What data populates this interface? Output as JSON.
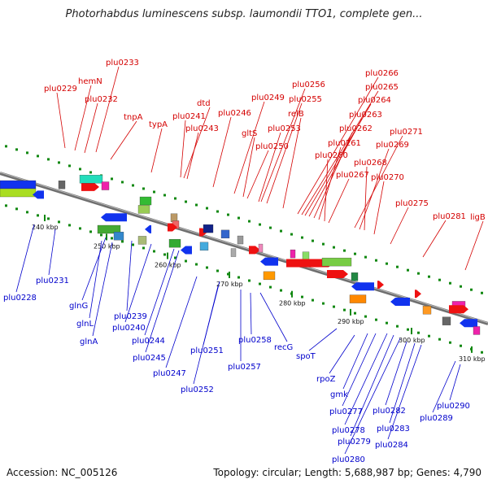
{
  "title": "Photorhabdus luminescens subsp. laumondii TTO1, complete gen...",
  "footer": {
    "accession": "Accession: NC_005126",
    "summary": "Topology: circular; Length: 5,688,987 bp; Genes: 4,790"
  },
  "colors": {
    "forward_label": "#d40000",
    "reverse_label": "#0000cc",
    "forward_gene": "#ee1111",
    "reverse_gene": "#1133ee",
    "backbone": "#777777",
    "tick": "#118811"
  },
  "ticks": [
    "240 kbp",
    "250 kbp",
    "260 kbp",
    "270 kbp",
    "280 kbp",
    "290 kbp",
    "300 kbp",
    "310 kbp"
  ],
  "forward_labels": [
    "plu0229",
    "hemN",
    "plu0233",
    "plu0232",
    "tnpA",
    "typA",
    "plu0241",
    "dtd",
    "plu0243",
    "plu0246",
    "plu0249",
    "gltS",
    "plu0250",
    "plu0253",
    "plu0256",
    "plu0255",
    "relB",
    "plu0266",
    "plu0265",
    "plu0264",
    "plu0263",
    "plu0262",
    "plu0261",
    "plu0260",
    "plu0267",
    "plu0268",
    "plu0271",
    "plu0269",
    "plu0270",
    "plu0275",
    "plu0281",
    "ligB"
  ],
  "reverse_labels": [
    "plu0228",
    "plu0231",
    "glnG",
    "glnL",
    "glnA",
    "plu0239",
    "plu0240",
    "plu0244",
    "plu0245",
    "plu0247",
    "plu0251",
    "plu0252",
    "plu0257",
    "plu0258",
    "recG",
    "spoT",
    "rpoZ",
    "gmk",
    "plu0277",
    "plu0278",
    "plu0279",
    "plu0280",
    "plu0282",
    "plu0283",
    "plu0284",
    "plu0289",
    "plu0290"
  ]
}
